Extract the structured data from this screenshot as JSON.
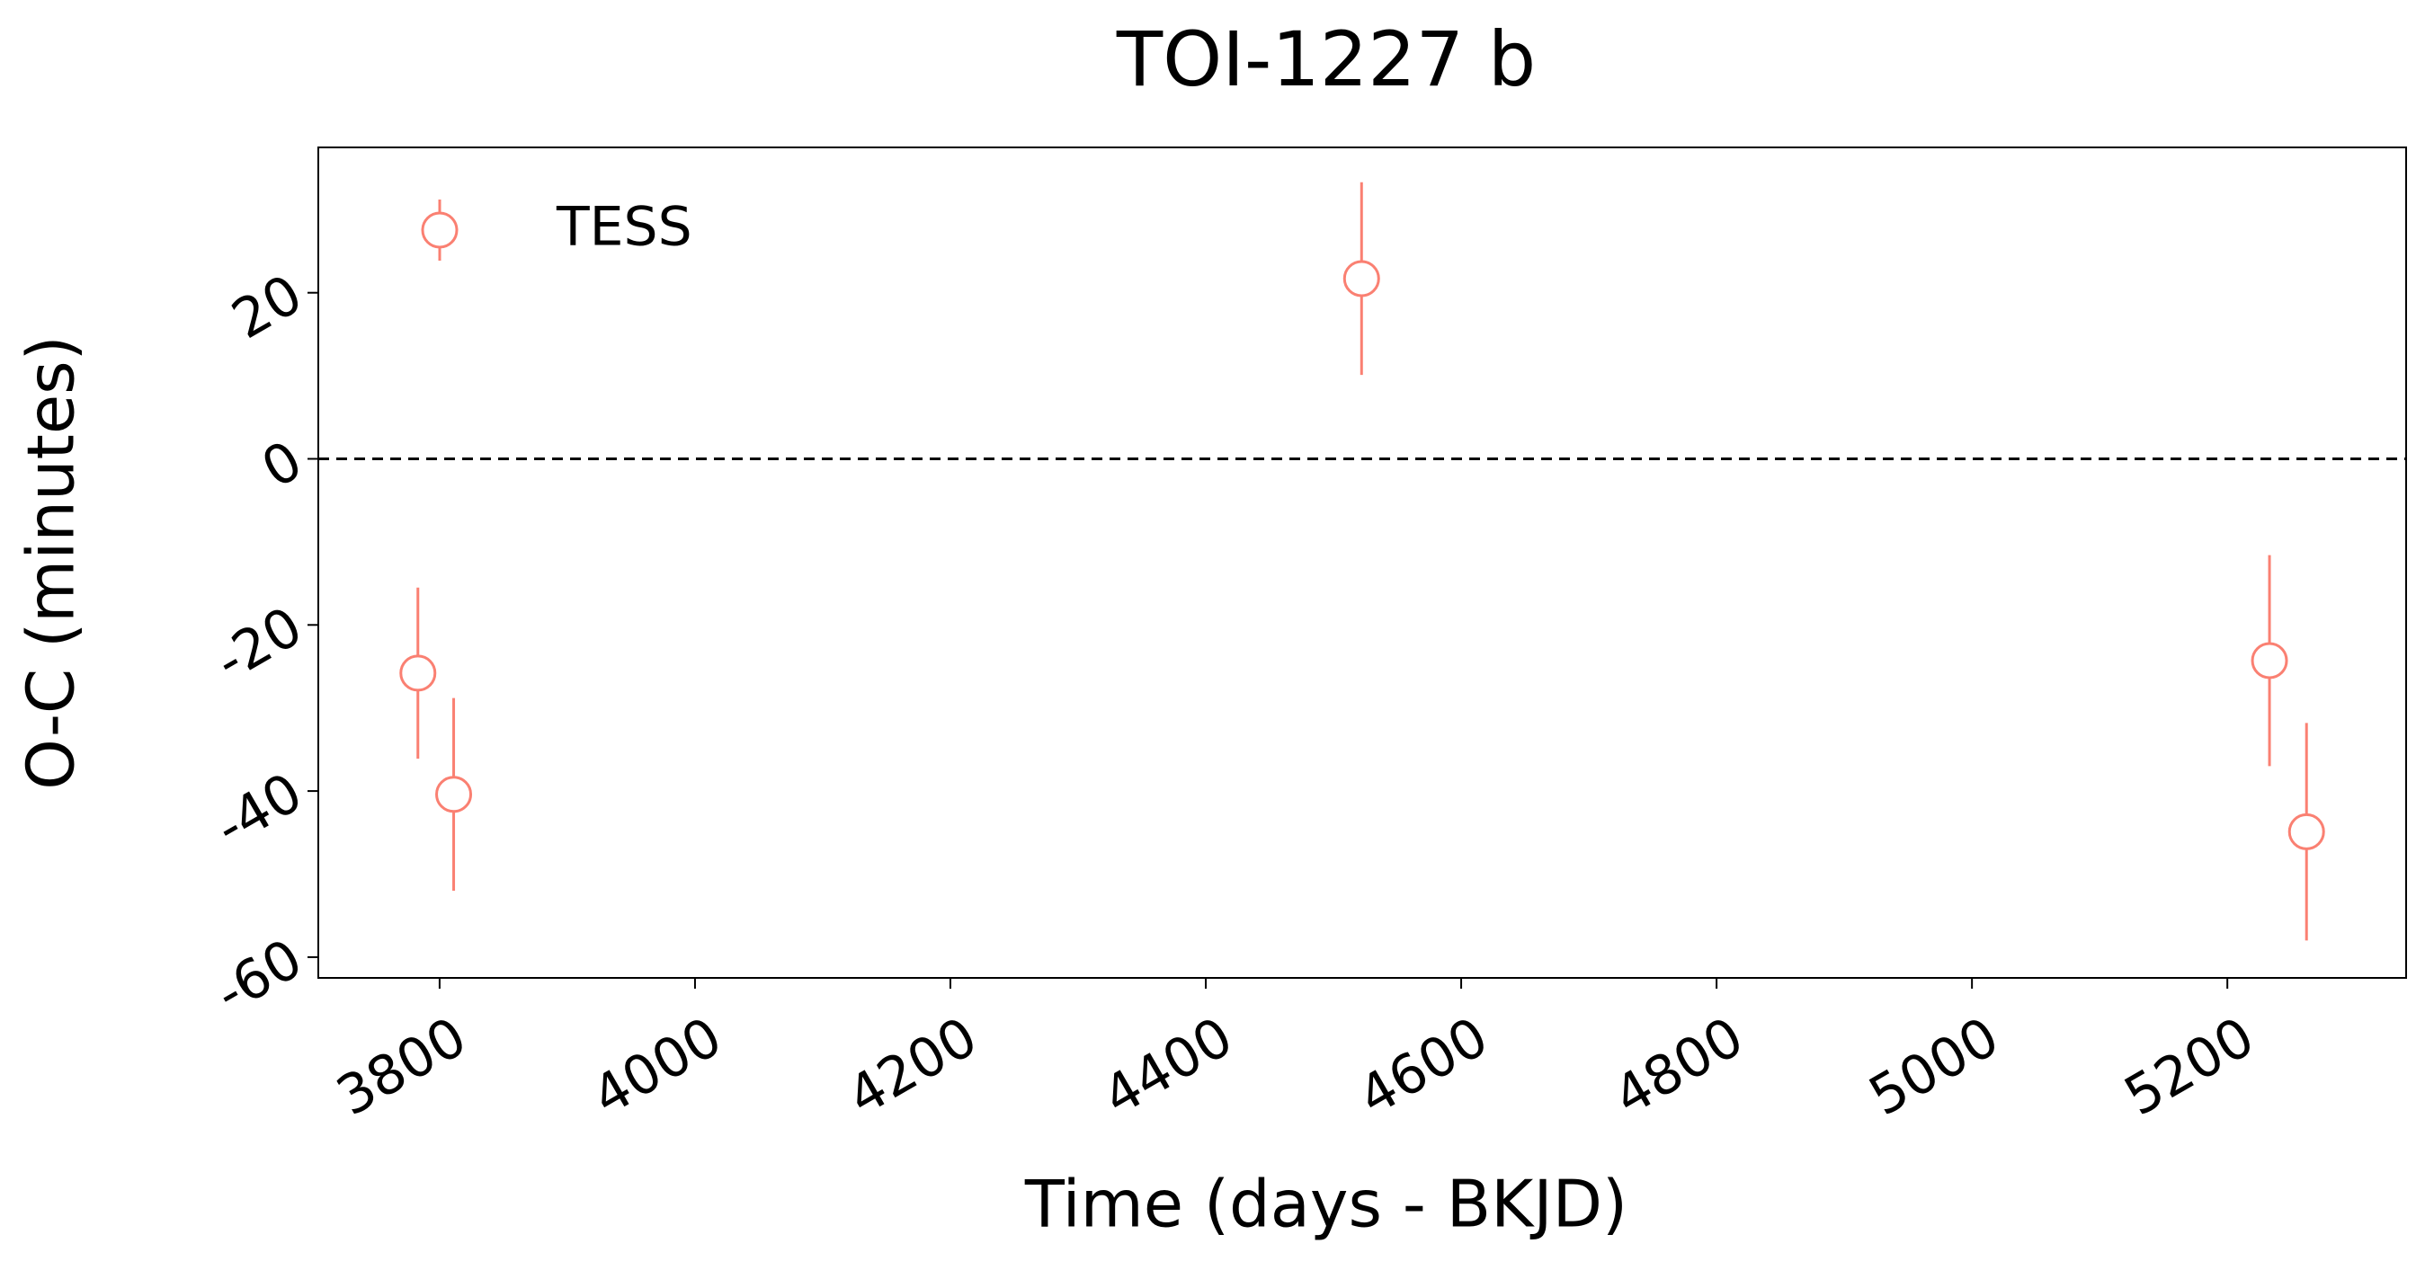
{
  "chart_data": {
    "type": "scatter",
    "title": "TOI-1227 b",
    "xlabel": "Time (days - BKJD)",
    "ylabel": "O-C (minutes)",
    "x": [
      3783,
      3811,
      4522,
      5233,
      5262
    ],
    "series": [
      {
        "name": "TESS",
        "color": "#fa8072",
        "values": [
          -25.8,
          -40.4,
          21.7,
          -24.3,
          -44.9
        ],
        "errors": [
          10.3,
          11.6,
          11.6,
          12.7,
          13.1
        ]
      }
    ],
    "reference_line": 0,
    "xlim": [
      3705,
      5340
    ],
    "xticks": [
      3800,
      4000,
      4200,
      4400,
      4600,
      4800,
      5000,
      5200
    ],
    "ylim": [
      -62.5,
      37.5
    ],
    "yticks": [
      -60,
      -40,
      -20,
      0,
      20
    ],
    "legend": "upper left",
    "grid": false
  }
}
